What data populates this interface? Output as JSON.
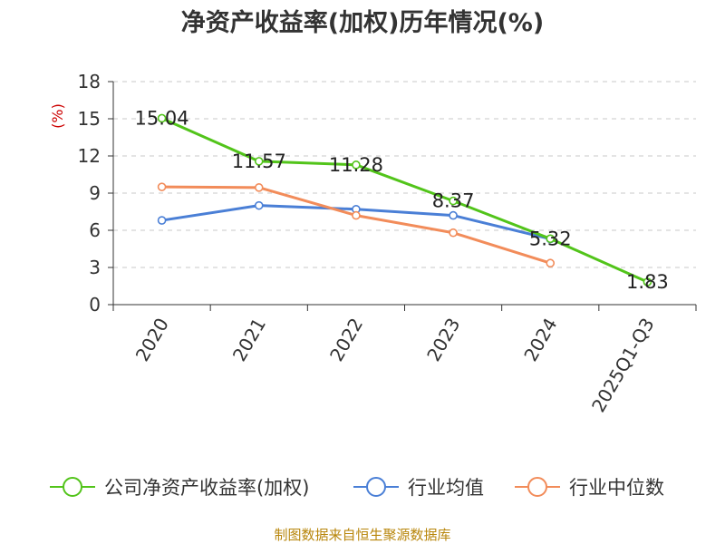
{
  "chart_data": {
    "type": "line",
    "title": "净资产收益率(加权)历年情况(%)",
    "ylabel": "(%)",
    "categories": [
      "2020",
      "2021",
      "2022",
      "2023",
      "2024",
      "2025Q1-Q3"
    ],
    "ylim": [
      0,
      18
    ],
    "yticks": [
      0,
      3,
      6,
      9,
      12,
      15,
      18
    ],
    "grid": true,
    "legend_position": "bottom",
    "series": [
      {
        "name": "公司净资产收益率(加权)",
        "color": "#52c41a",
        "values": [
          15.04,
          11.57,
          11.28,
          8.37,
          5.32,
          1.83
        ],
        "labels": [
          "15.04",
          "11.57",
          "11.28",
          "8.37",
          "5.32",
          "1.83"
        ]
      },
      {
        "name": "行业均值",
        "color": "#4a7fd6",
        "values": [
          6.8,
          8.0,
          7.7,
          7.2,
          5.3,
          null
        ]
      },
      {
        "name": "行业中位数",
        "color": "#f28c5a",
        "values": [
          9.5,
          9.45,
          7.2,
          5.8,
          3.35,
          null
        ]
      }
    ],
    "source": "制图数据来自恒生聚源数据库"
  }
}
